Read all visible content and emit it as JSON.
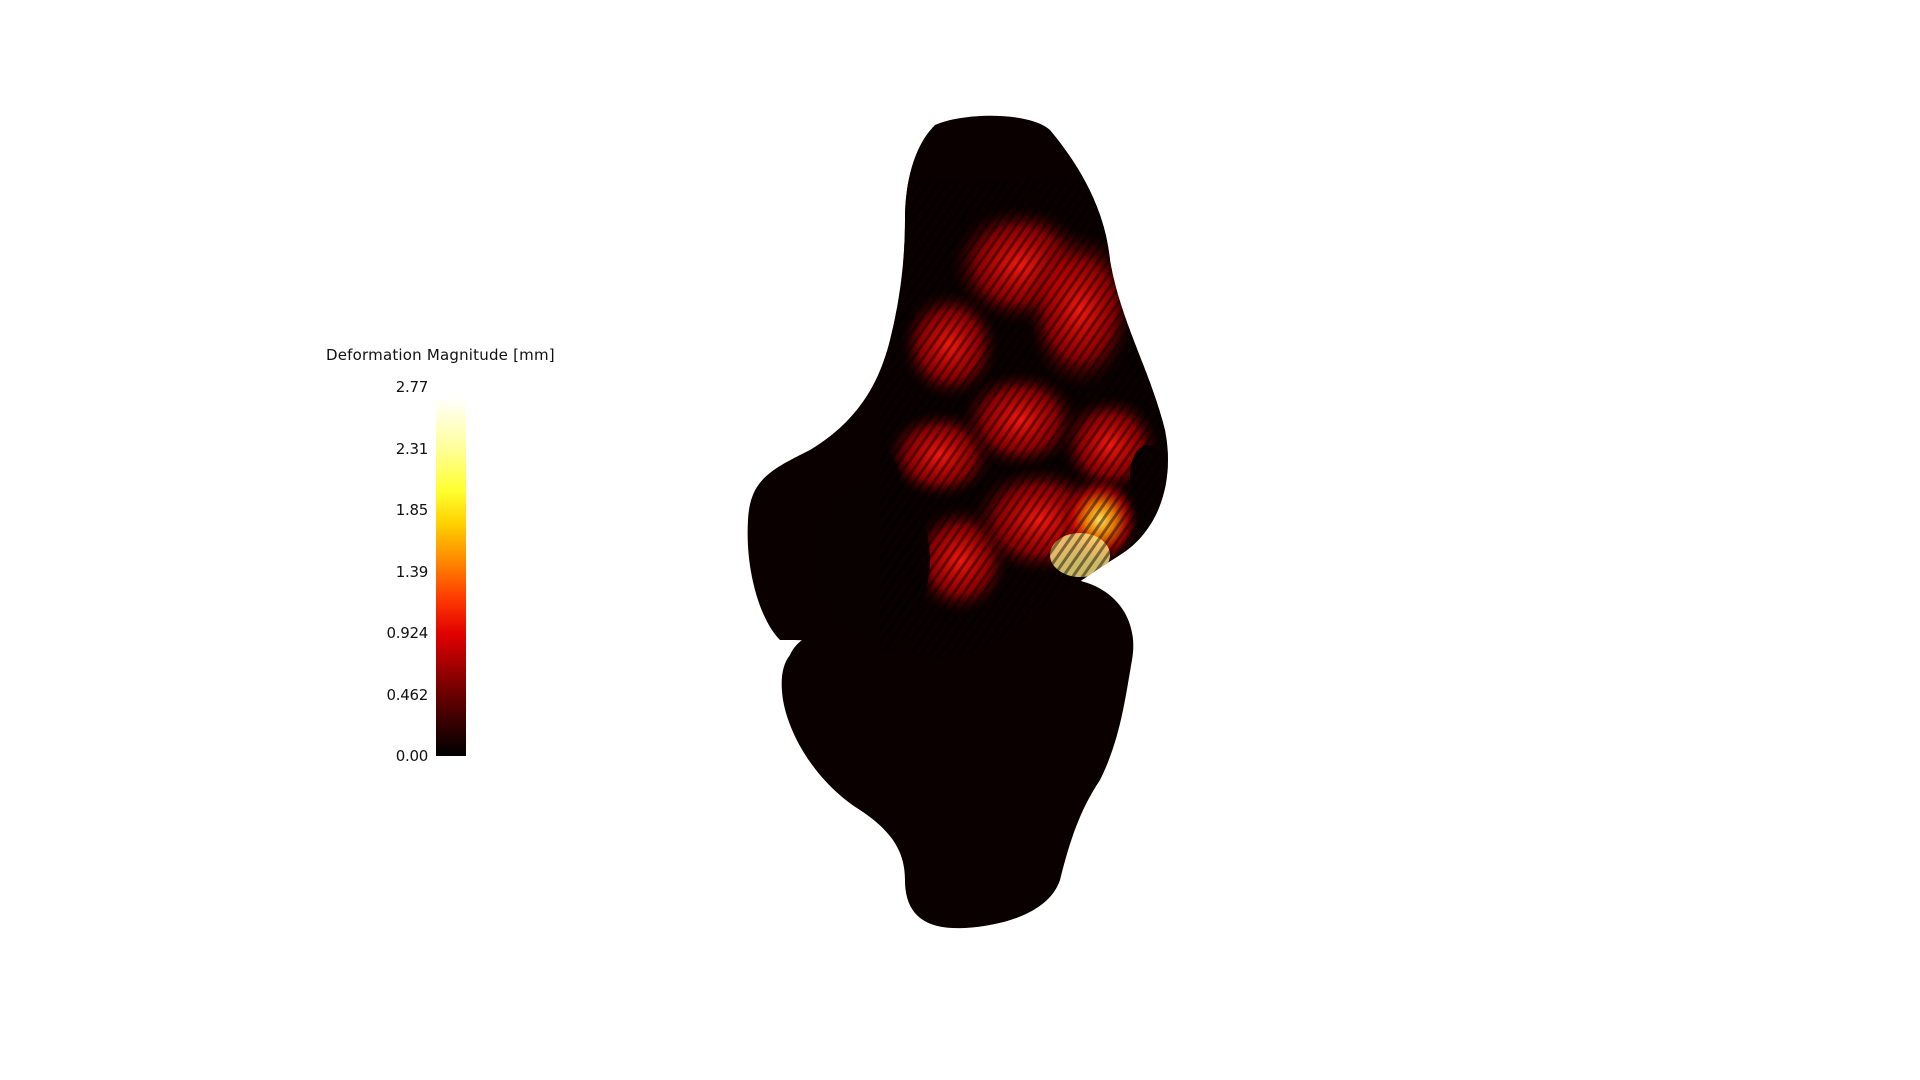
{
  "legend": {
    "title": "Deformation Magnitude [mm]",
    "colormap": "black-body (black-red-orange-yellow-white)",
    "min": 0.0,
    "max": 2.77,
    "ticks": [
      "2.77",
      "2.31",
      "1.85",
      "1.39",
      "0.924",
      "0.462",
      "0.00"
    ],
    "tick_values": [
      2.77,
      2.31,
      1.85,
      1.39,
      0.924,
      0.462,
      0.0
    ]
  },
  "model": {
    "base_color": "#0a0000",
    "hot_color": "#e01010",
    "peak_color": "#ffe040"
  }
}
